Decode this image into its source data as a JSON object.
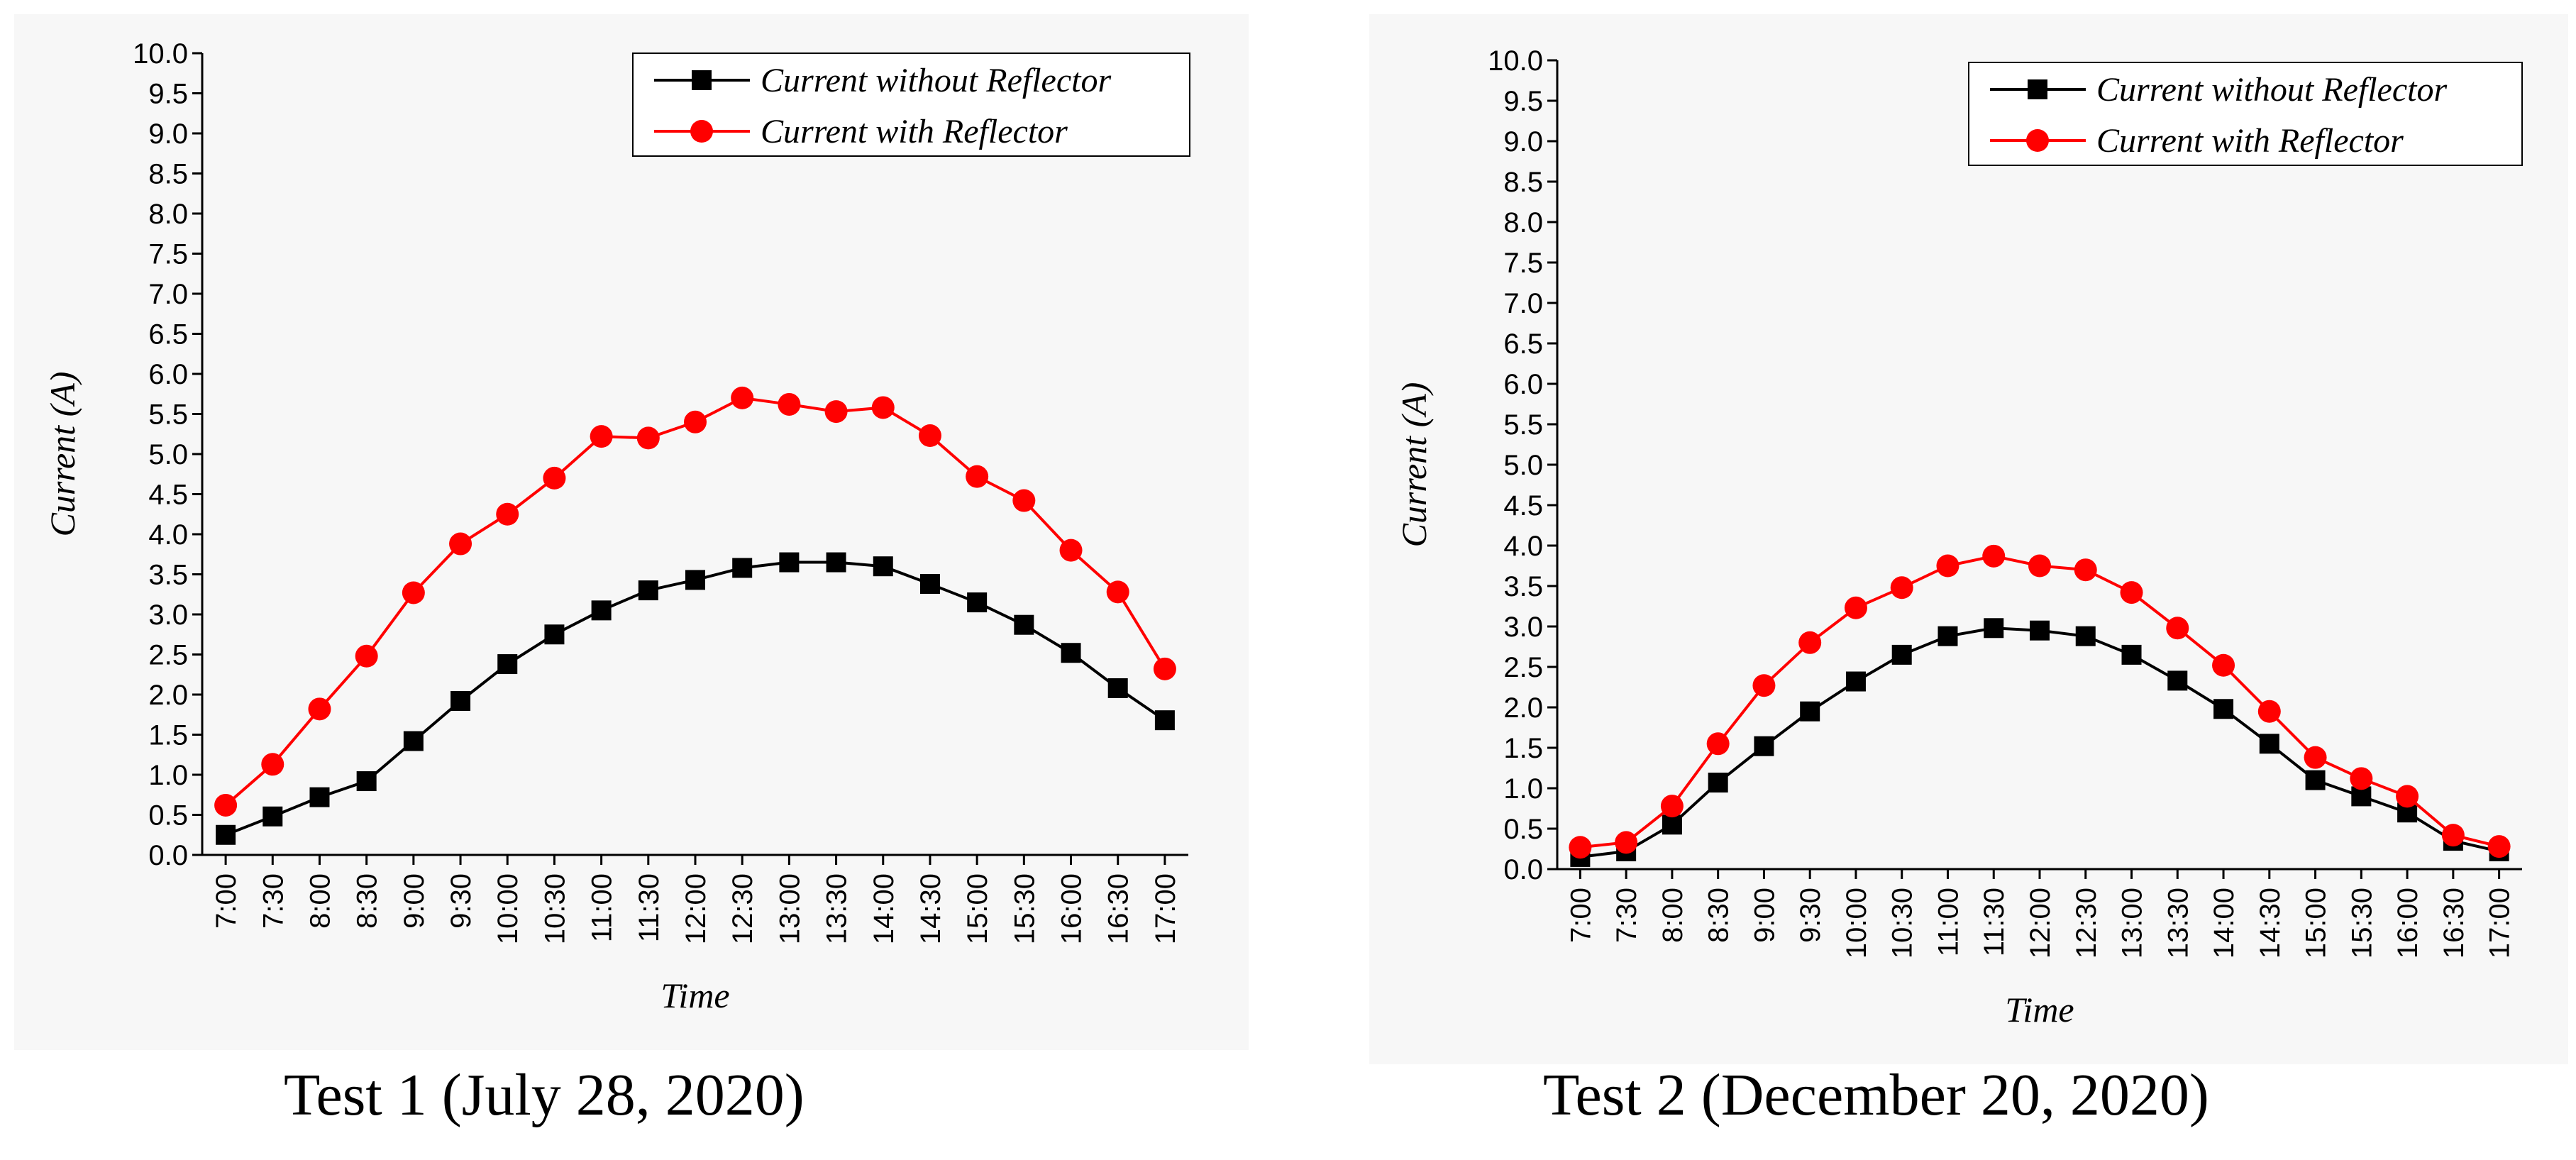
{
  "chart_data": [
    {
      "type": "line",
      "title": "",
      "caption": "Test 1 (July 28, 2020)",
      "xlabel": "Time",
      "ylabel": "Current (A)",
      "ylim": [
        0,
        10
      ],
      "yticks": [
        "0.0",
        "0.5",
        "1.0",
        "1.5",
        "2.0",
        "2.5",
        "3.0",
        "3.5",
        "4.0",
        "4.5",
        "5.0",
        "5.5",
        "6.0",
        "6.5",
        "7.0",
        "7.5",
        "8.0",
        "8.5",
        "9.0",
        "9.5",
        "10.0"
      ],
      "categories": [
        "7:00",
        "7:30",
        "8:00",
        "8:30",
        "9:00",
        "9:30",
        "10:00",
        "10:30",
        "11:00",
        "11:30",
        "12:00",
        "12:30",
        "13:00",
        "13:30",
        "14:00",
        "14:30",
        "15:00",
        "15:30",
        "16:00",
        "16:30",
        "17:00"
      ],
      "legend_position": "top-right",
      "series": [
        {
          "name": "Current without Reflector",
          "color": "#000000",
          "marker": "square",
          "values": [
            0.25,
            0.48,
            0.72,
            0.92,
            1.42,
            1.92,
            2.38,
            2.75,
            3.05,
            3.3,
            3.43,
            3.58,
            3.65,
            3.65,
            3.6,
            3.38,
            3.15,
            2.87,
            2.52,
            2.08,
            1.68
          ]
        },
        {
          "name": "Current with Reflector",
          "color": "#ff0000",
          "marker": "circle",
          "values": [
            0.62,
            1.13,
            1.82,
            2.48,
            3.27,
            3.88,
            4.25,
            4.7,
            5.22,
            5.2,
            5.4,
            5.7,
            5.62,
            5.53,
            5.58,
            5.23,
            4.72,
            4.42,
            3.8,
            3.28,
            2.32
          ]
        }
      ]
    },
    {
      "type": "line",
      "title": "",
      "caption": "Test 2 (December 20, 2020)",
      "xlabel": "Time",
      "ylabel": "Current (A)",
      "ylim": [
        0,
        10
      ],
      "yticks": [
        "0.0",
        "0.5",
        "1.0",
        "1.5",
        "2.0",
        "2.5",
        "3.0",
        "3.5",
        "4.0",
        "4.5",
        "5.0",
        "5.5",
        "6.0",
        "6.5",
        "7.0",
        "7.5",
        "8.0",
        "8.5",
        "9.0",
        "9.5",
        "10.0"
      ],
      "categories": [
        "7:00",
        "7:30",
        "8:00",
        "8:30",
        "9:00",
        "9:30",
        "10:00",
        "10:30",
        "11:00",
        "11:30",
        "12:00",
        "12:30",
        "13:00",
        "13:30",
        "14:00",
        "14:30",
        "15:00",
        "15:30",
        "16:00",
        "16:30",
        "17:00"
      ],
      "legend_position": "top-right",
      "series": [
        {
          "name": "Current without Reflector",
          "color": "#000000",
          "marker": "square",
          "values": [
            0.15,
            0.22,
            0.55,
            1.07,
            1.52,
            1.95,
            2.32,
            2.65,
            2.88,
            2.98,
            2.95,
            2.88,
            2.65,
            2.33,
            1.98,
            1.55,
            1.1,
            0.9,
            0.7,
            0.35,
            0.22
          ]
        },
        {
          "name": "Current with Reflector",
          "color": "#ff0000",
          "marker": "circle",
          "values": [
            0.27,
            0.33,
            0.78,
            1.55,
            2.27,
            2.8,
            3.23,
            3.48,
            3.75,
            3.87,
            3.75,
            3.7,
            3.42,
            2.98,
            2.52,
            1.95,
            1.38,
            1.12,
            0.9,
            0.42,
            0.28
          ]
        }
      ]
    }
  ]
}
